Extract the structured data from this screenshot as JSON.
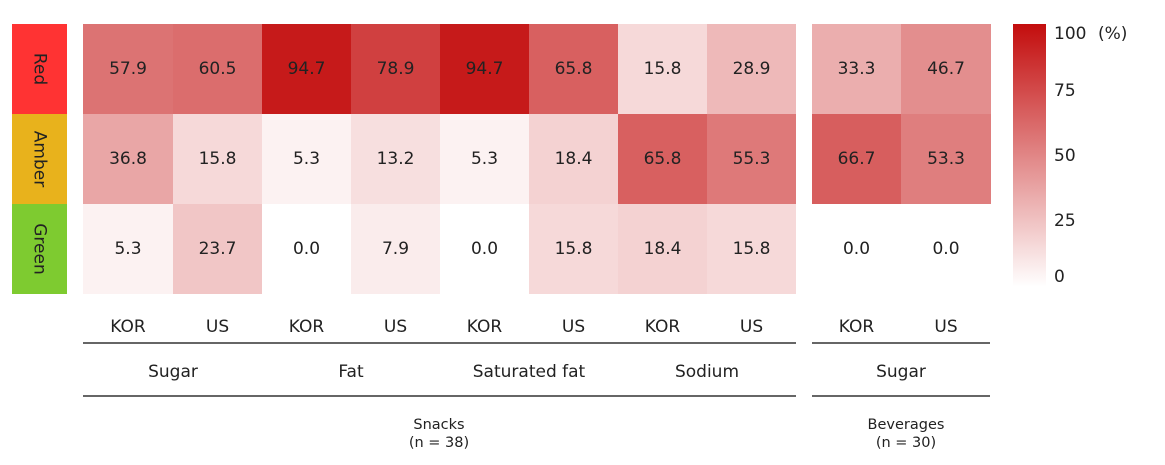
{
  "chart_data": {
    "type": "heatmap",
    "rows": [
      {
        "label": "Red",
        "color": "#ff3333"
      },
      {
        "label": "Amber",
        "color": "#e8b21c"
      },
      {
        "label": "Green",
        "color": "#7ecb30"
      }
    ],
    "columns": [
      {
        "country": "KOR",
        "nutrient": "Sugar",
        "section": "snacks"
      },
      {
        "country": "US",
        "nutrient": "Sugar",
        "section": "snacks"
      },
      {
        "country": "KOR",
        "nutrient": "Fat",
        "section": "snacks"
      },
      {
        "country": "US",
        "nutrient": "Fat",
        "section": "snacks"
      },
      {
        "country": "KOR",
        "nutrient": "Saturated fat",
        "section": "snacks"
      },
      {
        "country": "US",
        "nutrient": "Saturated fat",
        "section": "snacks"
      },
      {
        "country": "KOR",
        "nutrient": "Sodium",
        "section": "snacks"
      },
      {
        "country": "US",
        "nutrient": "Sodium",
        "section": "snacks"
      },
      {
        "country": "KOR",
        "nutrient": "Sugar",
        "section": "beverages"
      },
      {
        "country": "US",
        "nutrient": "Sugar",
        "section": "beverages"
      }
    ],
    "values": [
      [
        57.9,
        60.5,
        94.7,
        78.9,
        94.7,
        65.8,
        15.8,
        28.9,
        33.3,
        46.7
      ],
      [
        36.8,
        15.8,
        5.3,
        13.2,
        5.3,
        18.4,
        65.8,
        55.3,
        66.7,
        53.3
      ],
      [
        5.3,
        23.7,
        0.0,
        7.9,
        0.0,
        15.8,
        18.4,
        15.8,
        0.0,
        0.0
      ]
    ],
    "nutrient_groups": [
      "Sugar",
      "Fat",
      "Saturated fat",
      "Sodium",
      "Sugar"
    ],
    "sections": [
      {
        "key": "snacks",
        "name": "Snacks",
        "n": "(n = 38)"
      },
      {
        "key": "beverages",
        "name": "Beverages",
        "n": "(n = 30)"
      }
    ],
    "colorbar": {
      "min": 0,
      "max": 100,
      "ticks": [
        "0",
        "25",
        "50",
        "75",
        "100"
      ],
      "unit": "(%)",
      "low_color": "#ffffff",
      "high_color": "#c30d0d"
    }
  }
}
